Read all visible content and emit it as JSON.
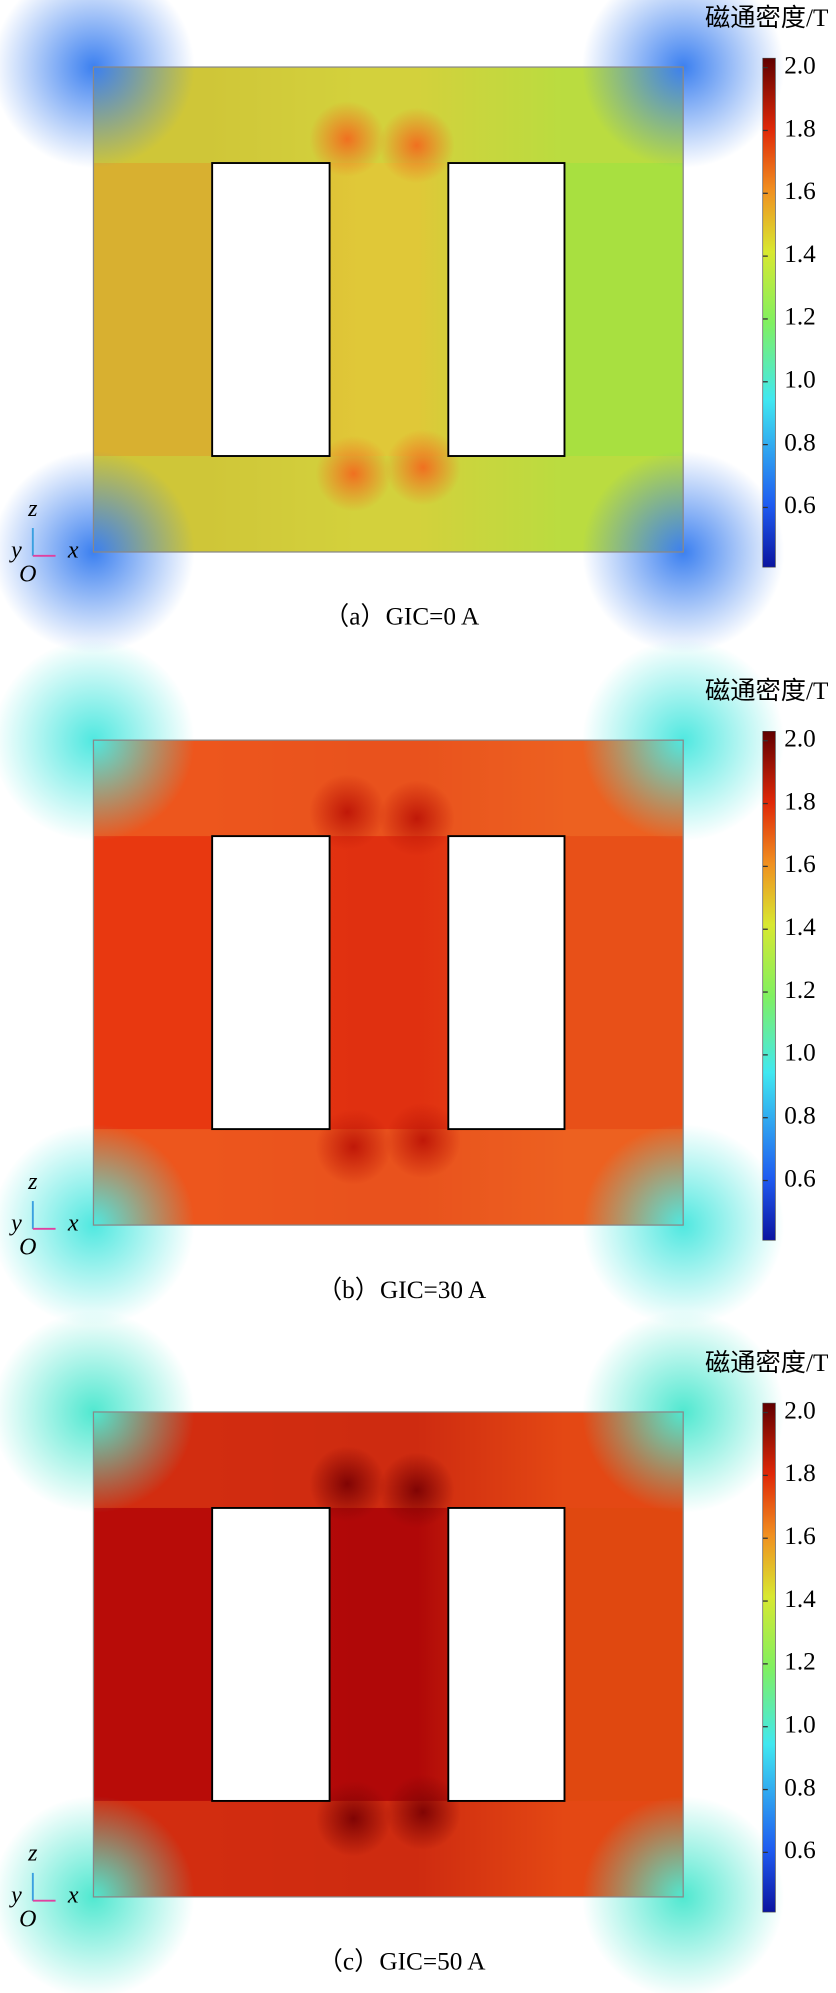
{
  "chart_data": [
    {
      "type": "heatmap",
      "caption": "（a）GIC=0 A",
      "colorbar_title": "磁通密度/T",
      "clim": [
        0.41,
        2.03
      ],
      "colorbar_ticks": [
        {
          "value": 0.6,
          "label": "0.6"
        },
        {
          "value": 0.8,
          "label": "0.8"
        },
        {
          "value": 1,
          "label": "1.0"
        },
        {
          "value": 1.2,
          "label": "1.2"
        },
        {
          "value": 1.4,
          "label": "1.4"
        },
        {
          "value": 1.6,
          "label": "1.6"
        },
        {
          "value": 1.8,
          "label": "1.8"
        },
        {
          "value": 2,
          "label": "2.0"
        }
      ],
      "axis_labels": {
        "z": "z",
        "y": "y",
        "x": "x",
        "origin": "O"
      }
    },
    {
      "type": "heatmap",
      "caption": "（b）GIC=30 A",
      "colorbar_title": "磁通密度/T",
      "clim": [
        0.41,
        2.03
      ],
      "colorbar_ticks": [
        {
          "value": 0.6,
          "label": "0.6"
        },
        {
          "value": 0.8,
          "label": "0.8"
        },
        {
          "value": 1,
          "label": "1.0"
        },
        {
          "value": 1.2,
          "label": "1.2"
        },
        {
          "value": 1.4,
          "label": "1.4"
        },
        {
          "value": 1.6,
          "label": "1.6"
        },
        {
          "value": 1.8,
          "label": "1.8"
        },
        {
          "value": 2,
          "label": "2.0"
        }
      ],
      "axis_labels": {
        "z": "z",
        "y": "y",
        "x": "x",
        "origin": "O"
      }
    },
    {
      "type": "heatmap",
      "caption": "（c）GIC=50 A",
      "colorbar_title": "磁通密度/T",
      "clim": [
        0.41,
        2.03
      ],
      "colorbar_ticks": [
        {
          "value": 0.6,
          "label": "0.6"
        },
        {
          "value": 0.8,
          "label": "0.8"
        },
        {
          "value": 1,
          "label": "1.0"
        },
        {
          "value": 1.2,
          "label": "1.2"
        },
        {
          "value": 1.4,
          "label": "1.4"
        },
        {
          "value": 1.6,
          "label": "1.6"
        },
        {
          "value": 1.8,
          "label": "1.8"
        },
        {
          "value": 2,
          "label": "2.0"
        }
      ],
      "axis_labels": {
        "z": "z",
        "y": "y",
        "x": "x",
        "origin": "O"
      }
    }
  ]
}
